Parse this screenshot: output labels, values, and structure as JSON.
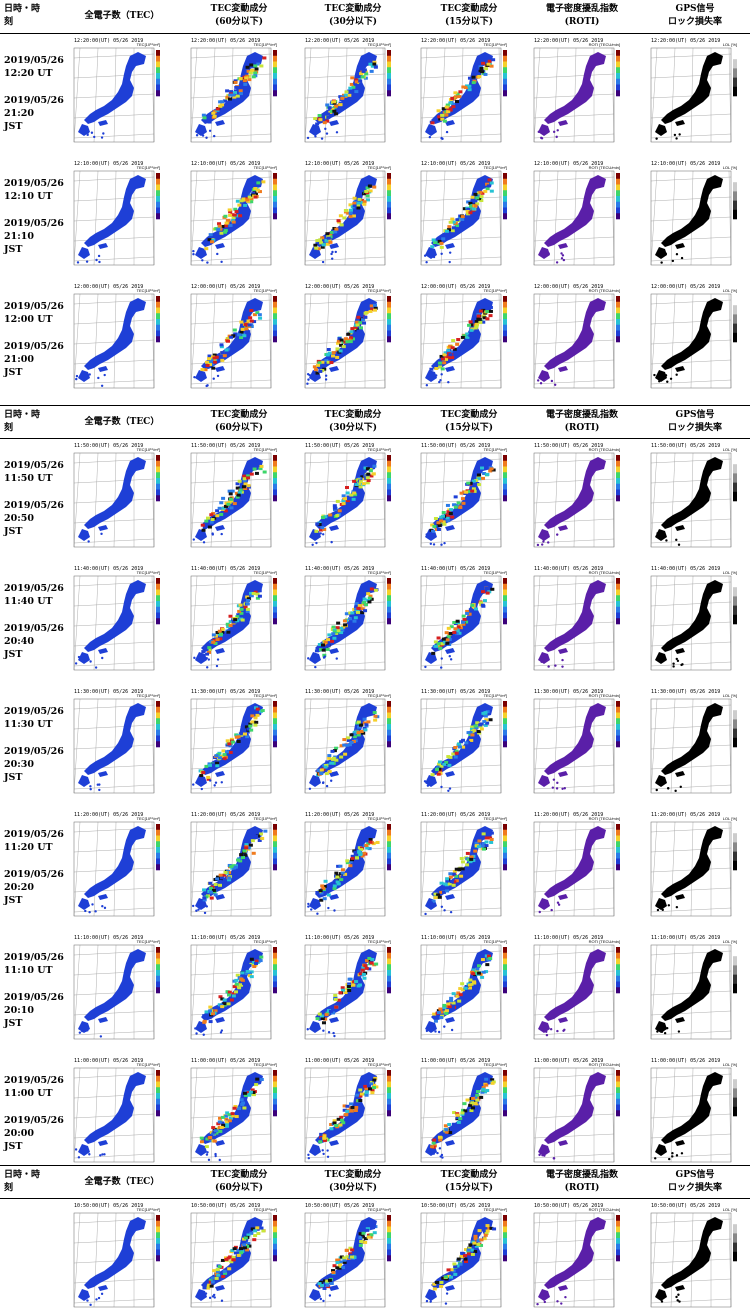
{
  "headers": {
    "date_time": [
      "日時・時",
      "刻"
    ],
    "tec": [
      "全電子数（TEC）"
    ],
    "tec60": [
      "TEC変動成分",
      "(60分以下)"
    ],
    "tec30": [
      "TEC変動成分",
      "(30分以下)"
    ],
    "tec15": [
      "TEC変動成分",
      "(15分以下)"
    ],
    "roti": [
      "電子密度擾乱指数",
      "(ROTI)"
    ],
    "gps": [
      "GPS信号",
      "ロック損失率"
    ]
  },
  "date": "2019/05/26",
  "groups": [
    {
      "rows": [
        {
          "ut": "12:20 UT",
          "jst": "21:20",
          "caption": "12:20:00(UT)  05/26 2019"
        },
        {
          "ut": "12:10 UT",
          "jst": "21:10",
          "caption": "12:10:00(UT)  05/26 2019"
        },
        {
          "ut": "12:00 UT",
          "jst": "21:00",
          "caption": "12:00:00(UT)  05/26 2019"
        }
      ]
    },
    {
      "rows": [
        {
          "ut": "11:50 UT",
          "jst": "20:50",
          "caption": "11:50:00(UT)  05/26 2019"
        },
        {
          "ut": "11:40 UT",
          "jst": "20:40",
          "caption": "11:40:00(UT)  05/26 2019"
        },
        {
          "ut": "11:30 UT",
          "jst": "20:30",
          "caption": "11:30:00(UT)  05/26 2019"
        },
        {
          "ut": "11:20 UT",
          "jst": "20:20",
          "caption": "11:20:00(UT)  05/26 2019"
        },
        {
          "ut": "11:10 UT",
          "jst": "20:10",
          "caption": "11:10:00(UT)  05/26 2019"
        },
        {
          "ut": "11:00 UT",
          "jst": "20:00",
          "caption": "11:00:00(UT)  05/26 2019"
        }
      ]
    },
    {
      "rows": [
        {
          "ut": "",
          "jst": "",
          "caption": "10:50:00(UT)  05/26 2019"
        }
      ]
    }
  ],
  "jst_label": "JST",
  "units": {
    "tec": "TEC[10¹⁶/m²]",
    "dtec": "TEC[10¹⁶/m²]",
    "roti": "ROTI [TECU/min]",
    "gps": "LOL [%]"
  },
  "map_ticks": {
    "lat": [
      "48",
      "44",
      "40",
      "36",
      "32",
      "28",
      "24"
    ],
    "lon": [
      "124",
      "128",
      "132",
      "136",
      "140",
      "144",
      "148"
    ]
  },
  "colors": {
    "tec_land": "#1e3fd6",
    "roti_land": "#5a1fa8",
    "gps_land": "#000000",
    "map_frame": "#999999"
  }
}
